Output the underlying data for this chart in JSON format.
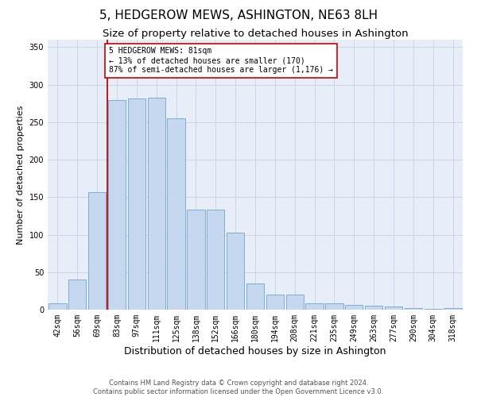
{
  "title": "5, HEDGEROW MEWS, ASHINGTON, NE63 8LH",
  "subtitle": "Size of property relative to detached houses in Ashington",
  "xlabel": "Distribution of detached houses by size in Ashington",
  "ylabel": "Number of detached properties",
  "categories": [
    "42sqm",
    "56sqm",
    "69sqm",
    "83sqm",
    "97sqm",
    "111sqm",
    "125sqm",
    "138sqm",
    "152sqm",
    "166sqm",
    "180sqm",
    "194sqm",
    "208sqm",
    "221sqm",
    "235sqm",
    "249sqm",
    "263sqm",
    "277sqm",
    "290sqm",
    "304sqm",
    "318sqm"
  ],
  "values": [
    8,
    40,
    157,
    280,
    282,
    283,
    255,
    133,
    133,
    103,
    35,
    20,
    20,
    9,
    8,
    6,
    5,
    4,
    2,
    1,
    2
  ],
  "bar_color": "#c5d8f0",
  "bar_edge_color": "#7aafd4",
  "vline_x_index": 2.5,
  "vline_color": "#cc0000",
  "annotation_text": "5 HEDGEROW MEWS: 81sqm\n← 13% of detached houses are smaller (170)\n87% of semi-detached houses are larger (1,176) →",
  "annotation_box_color": "#ffffff",
  "annotation_box_edge_color": "#cc0000",
  "ylim": [
    0,
    360
  ],
  "yticks": [
    0,
    50,
    100,
    150,
    200,
    250,
    300,
    350
  ],
  "title_fontsize": 11,
  "subtitle_fontsize": 9.5,
  "xlabel_fontsize": 9,
  "ylabel_fontsize": 8,
  "tick_fontsize": 7,
  "annotation_fontsize": 7,
  "footer_line1": "Contains HM Land Registry data © Crown copyright and database right 2024.",
  "footer_line2": "Contains public sector information licensed under the Open Government Licence v3.0.",
  "background_color": "#ffffff",
  "grid_color": "#ccd6e8",
  "axes_bg_color": "#e8eef8"
}
